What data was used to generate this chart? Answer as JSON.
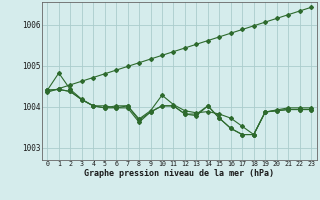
{
  "xlabel": "Graphe pression niveau de la mer (hPa)",
  "xlim": [
    -0.5,
    23.5
  ],
  "ylim": [
    1002.7,
    1006.55
  ],
  "yticks": [
    1003,
    1004,
    1005,
    1006
  ],
  "xticks": [
    0,
    1,
    2,
    3,
    4,
    5,
    6,
    7,
    8,
    9,
    10,
    11,
    12,
    13,
    14,
    15,
    16,
    17,
    18,
    19,
    20,
    21,
    22,
    23
  ],
  "background_color": "#d5ecec",
  "grid_color": "#aacccc",
  "line_color": "#2d6a2d",
  "series1_straight": [
    1004.35,
    1004.44,
    1004.53,
    1004.62,
    1004.71,
    1004.8,
    1004.89,
    1004.98,
    1005.07,
    1005.16,
    1005.25,
    1005.34,
    1005.43,
    1005.52,
    1005.61,
    1005.7,
    1005.79,
    1005.88,
    1005.97,
    1006.06,
    1006.15,
    1006.24,
    1006.33,
    1006.42
  ],
  "series2": [
    1004.4,
    1004.82,
    1004.42,
    1004.18,
    1004.02,
    1004.02,
    1003.97,
    1004.02,
    1003.7,
    1003.9,
    1004.28,
    1004.05,
    1003.9,
    1003.85,
    1003.88,
    1003.82,
    1003.72,
    1003.52,
    1003.32,
    1003.87,
    1003.92,
    1003.97,
    1003.97,
    1003.97
  ],
  "series3": [
    1004.4,
    1004.42,
    1004.37,
    1004.17,
    1004.02,
    1003.97,
    1004.02,
    1004.02,
    1003.67,
    1003.87,
    1004.02,
    1004.02,
    1003.82,
    1003.82,
    1004.02,
    1003.72,
    1003.47,
    1003.32,
    1003.32,
    1003.87,
    1003.9,
    1003.93,
    1003.93,
    1003.93
  ],
  "series4": [
    1004.4,
    1004.42,
    1004.37,
    1004.17,
    1004.02,
    1003.97,
    1003.97,
    1003.97,
    1003.62,
    1003.87,
    1004.02,
    1004.02,
    1003.82,
    1003.78,
    1004.02,
    1003.72,
    1003.47,
    1003.32,
    1003.32,
    1003.87,
    1003.9,
    1003.93,
    1003.93,
    1003.93
  ]
}
